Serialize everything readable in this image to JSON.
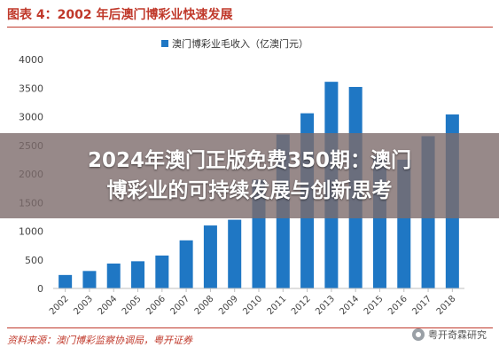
{
  "header": {
    "title": "图表 4：2002 年后澳门博彩业快速发展"
  },
  "chart_data": {
    "type": "bar",
    "categories": [
      "2002",
      "2003",
      "2004",
      "2005",
      "2006",
      "2007",
      "2008",
      "2009",
      "2010",
      "2011",
      "2012",
      "2013",
      "2014",
      "2015",
      "2016",
      "2017",
      "2018"
    ],
    "series": [
      {
        "name": "澳门博彩业毛收入（亿澳门元）",
        "values": [
          235,
          305,
          435,
          475,
          575,
          840,
          1100,
          1200,
          1900,
          2690,
          3060,
          3610,
          3520,
          2320,
          2250,
          2660,
          3040
        ]
      }
    ],
    "ylim": [
      0,
      4000
    ],
    "yticks": [
      0,
      500,
      1000,
      1500,
      2000,
      2500,
      3000,
      3500,
      4000
    ],
    "grid": false,
    "legend_position": "top",
    "bar_color": "#1f77c4"
  },
  "footer": {
    "source": "资料来源：澳门博彩监察协调局，粤开证券",
    "watermark": "粤开奇霖研究"
  },
  "banner": {
    "line1": "2024年澳门正版免费350期：澳门",
    "line2": "博彩业的可持续发展与创新思考"
  }
}
